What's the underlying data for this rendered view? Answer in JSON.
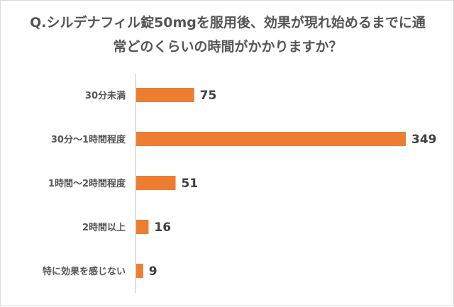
{
  "chart_data": {
    "type": "bar",
    "orientation": "horizontal",
    "title": "Q.シルデナフィル錠50mgを服用後、効果が現れ始めるまでに通常どのくらいの時間がかかりますか？",
    "categories": [
      "30分未満",
      "30分～1時間程度",
      "1時間～2時間程度",
      "2時間以上",
      "特に効果を感じない"
    ],
    "values": [
      75,
      349,
      51,
      16,
      9
    ],
    "xlabel": "",
    "ylabel": "",
    "xlim": [
      0,
      349
    ],
    "grid": false,
    "legend": "none",
    "bar_color": "#ED7D31"
  }
}
